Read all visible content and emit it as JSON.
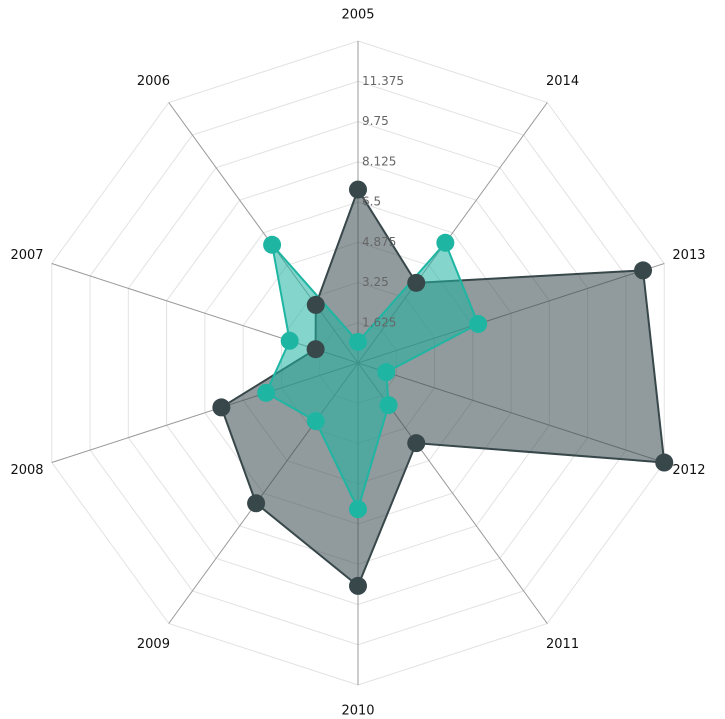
{
  "chart_data": {
    "type": "radar",
    "categories": [
      "2005",
      "2014",
      "2013",
      "2012",
      "2011",
      "2010",
      "2009",
      "2008",
      "2007",
      "2006"
    ],
    "series": [
      {
        "color": "#37474a",
        "values": [
          7,
          4,
          12.1,
          13,
          4,
          9,
          7,
          5.8,
          1.8,
          2.9
        ]
      },
      {
        "color": "#1fb5a3",
        "values": [
          0.85,
          6,
          5.1,
          1.2,
          2.1,
          5.9,
          2.9,
          3.9,
          2.9,
          5.9
        ]
      }
    ],
    "ylim": [
      0,
      13
    ],
    "yticks": [
      1.625,
      3.25,
      4.875,
      6.5,
      8.125,
      9.75,
      11.375
    ],
    "grid": true
  }
}
